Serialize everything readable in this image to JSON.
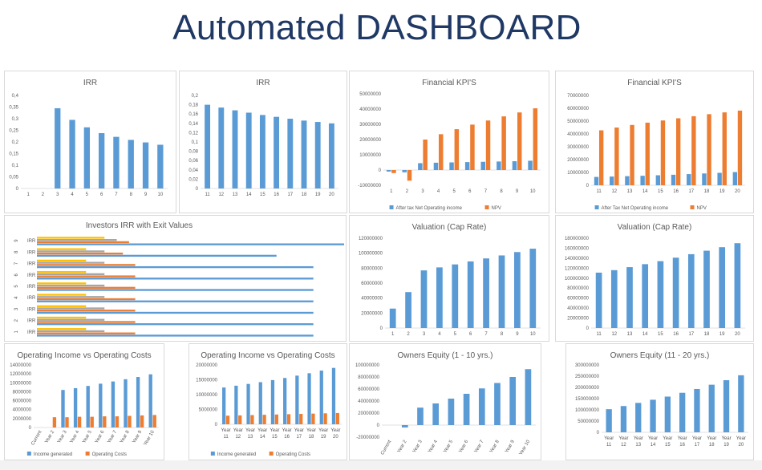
{
  "page": {
    "title": "Automated DASHBOARD"
  },
  "colors": {
    "blue": "#5b9bd5",
    "orange": "#ed7d31",
    "gray": "#a5a5a5",
    "yellow": "#ffc000",
    "title": "#1f3864"
  },
  "chart_data": [
    {
      "id": "irr1",
      "type": "bar",
      "title": "IRR",
      "categories": [
        "1",
        "2",
        "3",
        "4",
        "5",
        "6",
        "7",
        "8",
        "9",
        "10"
      ],
      "series": [
        {
          "color": "#5b9bd5",
          "values": [
            0,
            0,
            0.345,
            0.295,
            0.263,
            0.238,
            0.222,
            0.209,
            0.198,
            0.188
          ]
        }
      ],
      "ylim": [
        0,
        0.4
      ],
      "yticks": [
        0,
        0.05,
        0.1,
        0.15,
        0.2,
        0.25,
        0.3,
        0.35,
        0.4
      ],
      "ytick_labels": [
        "0",
        "0,05",
        "0,1",
        "0,15",
        "0,2",
        "0,25",
        "0,3",
        "0,35",
        "0,4"
      ]
    },
    {
      "id": "irr2",
      "type": "bar",
      "title": "IRR",
      "categories": [
        "11",
        "12",
        "13",
        "14",
        "15",
        "16",
        "17",
        "18",
        "19",
        "20"
      ],
      "series": [
        {
          "color": "#5b9bd5",
          "values": [
            0.18,
            0.174,
            0.168,
            0.163,
            0.158,
            0.154,
            0.15,
            0.146,
            0.143,
            0.14
          ]
        }
      ],
      "ylim": [
        0,
        0.2
      ],
      "yticks": [
        0,
        0.02,
        0.04,
        0.06,
        0.08,
        0.1,
        0.12,
        0.14,
        0.16,
        0.18,
        0.2
      ],
      "ytick_labels": [
        "0",
        "0,02",
        "0,04",
        "0,06",
        "0,08",
        "0,1",
        "0,12",
        "0,14",
        "0,16",
        "0,18",
        "0,2"
      ]
    },
    {
      "id": "kpi1",
      "type": "bar",
      "title": "Financial KPI'S",
      "categories": [
        "1",
        "2",
        "3",
        "4",
        "5",
        "6",
        "7",
        "8",
        "9",
        "10"
      ],
      "series": [
        {
          "name": "After tax Net Operating income",
          "color": "#5b9bd5",
          "values": [
            -1000000,
            -1500000,
            4500000,
            4800000,
            5000000,
            5200000,
            5400000,
            5600000,
            5800000,
            6100000
          ]
        },
        {
          "name": "NPV",
          "color": "#ed7d31",
          "values": [
            -2000000,
            -7000000,
            20000000,
            23500000,
            26800000,
            29800000,
            32500000,
            35200000,
            37800000,
            40500000
          ]
        }
      ],
      "ylim": [
        -10000000,
        50000000
      ],
      "yticks": [
        -10000000,
        0,
        10000000,
        20000000,
        30000000,
        40000000,
        50000000
      ],
      "ytick_labels": [
        "-10000000",
        "0",
        "10000000",
        "20000000",
        "30000000",
        "40000000",
        "50000000"
      ],
      "legend": [
        "After tax Net Operating income",
        "NPV"
      ]
    },
    {
      "id": "kpi2",
      "type": "bar",
      "title": "Financial KPI'S",
      "categories": [
        "11",
        "12",
        "13",
        "14",
        "15",
        "16",
        "17",
        "18",
        "19",
        "20"
      ],
      "series": [
        {
          "name": "After Tax Net Operating income",
          "color": "#5b9bd5",
          "values": [
            6500000,
            6800000,
            7100000,
            7400000,
            7800000,
            8200000,
            8700000,
            9200000,
            9700000,
            10300000
          ]
        },
        {
          "name": "NPV",
          "color": "#ed7d31",
          "values": [
            42800000,
            45000000,
            47000000,
            48800000,
            50500000,
            52200000,
            53800000,
            55400000,
            56800000,
            58200000
          ]
        }
      ],
      "ylim": [
        0,
        70000000
      ],
      "yticks": [
        0,
        10000000,
        20000000,
        30000000,
        40000000,
        50000000,
        60000000,
        70000000
      ],
      "ytick_labels": [
        "0",
        "10000000",
        "20000000",
        "30000000",
        "40000000",
        "50000000",
        "60000000",
        "70000000"
      ],
      "legend": [
        "After Tax Net Operating income",
        "NPV"
      ]
    },
    {
      "id": "investors",
      "type": "hbar",
      "title": "Investors IRR with Exit Values",
      "categories": [
        "1",
        "2",
        "3",
        "4",
        "5",
        "6",
        "7",
        "8",
        "9"
      ],
      "row_label": "IRR",
      "series": [
        {
          "color": "#5b9bd5",
          "values": [
            0.9,
            0.9,
            0.9,
            0.9,
            0.9,
            0.9,
            0.9,
            0.78,
            1.0
          ]
        },
        {
          "color": "#ed7d31",
          "values": [
            0.32,
            0.32,
            0.32,
            0.32,
            0.32,
            0.32,
            0.32,
            0.28,
            0.3
          ]
        },
        {
          "color": "#a5a5a5",
          "values": [
            0.22,
            0.22,
            0.22,
            0.22,
            0.22,
            0.22,
            0.22,
            0.22,
            0.26
          ]
        },
        {
          "color": "#ffc000",
          "values": [
            0.16,
            0.16,
            0.16,
            0.16,
            0.16,
            0.16,
            0.16,
            0.16,
            0.22
          ]
        }
      ]
    },
    {
      "id": "val1",
      "type": "bar",
      "title": "Valuation (Cap Rate)",
      "categories": [
        "1",
        "2",
        "3",
        "4",
        "5",
        "6",
        "7",
        "8",
        "9",
        "10"
      ],
      "series": [
        {
          "color": "#5b9bd5",
          "values": [
            26000000,
            48000000,
            77000000,
            81000000,
            85000000,
            89000000,
            93000000,
            97000000,
            101500000,
            106000000
          ]
        }
      ],
      "ylim": [
        0,
        120000000
      ],
      "yticks": [
        0,
        20000000,
        40000000,
        60000000,
        80000000,
        100000000,
        120000000
      ],
      "ytick_labels": [
        "0",
        "20000000",
        "40000000",
        "60000000",
        "80000000",
        "100000000",
        "120000000"
      ]
    },
    {
      "id": "val2",
      "type": "bar",
      "title": "Valuation (Cap Rate)",
      "categories": [
        "11",
        "12",
        "13",
        "14",
        "15",
        "16",
        "17",
        "18",
        "19",
        "20"
      ],
      "series": [
        {
          "color": "#5b9bd5",
          "values": [
            111000000,
            116000000,
            122000000,
            128000000,
            134000000,
            141000000,
            148000000,
            155000000,
            162000000,
            170000000
          ]
        }
      ],
      "ylim": [
        0,
        180000000
      ],
      "yticks": [
        0,
        20000000,
        40000000,
        60000000,
        80000000,
        100000000,
        120000000,
        140000000,
        160000000,
        180000000
      ],
      "ytick_labels": [
        "0",
        "20000000",
        "40000000",
        "60000000",
        "80000000",
        "100000000",
        "120000000",
        "140000000",
        "160000000",
        "180000000"
      ]
    },
    {
      "id": "opinc1",
      "type": "bar",
      "title": "Operating Income vs Operating Costs",
      "categories": [
        "Current",
        "Year 2",
        "Year 3",
        "Year 4",
        "Year 5",
        "Year 6",
        "Year 7",
        "Year 8",
        "Year 9",
        "Year 10"
      ],
      "rotate_labels": true,
      "series": [
        {
          "name": "Income generated",
          "color": "#5b9bd5",
          "values": [
            0,
            0,
            8400000,
            8800000,
            9300000,
            9800000,
            10300000,
            10800000,
            11300000,
            11900000
          ]
        },
        {
          "name": "Operating Costs",
          "color": "#ed7d31",
          "values": [
            0,
            2300000,
            2300000,
            2400000,
            2400000,
            2500000,
            2500000,
            2600000,
            2700000,
            2800000
          ]
        }
      ],
      "ylim": [
        0,
        14000000
      ],
      "yticks": [
        0,
        2000000,
        4000000,
        6000000,
        8000000,
        10000000,
        12000000,
        14000000
      ],
      "ytick_labels": [
        "0",
        "2000000",
        "4000000",
        "6000000",
        "8000000",
        "10000000",
        "12000000",
        "14000000"
      ],
      "legend": [
        "Income generated",
        "Operating Costs"
      ]
    },
    {
      "id": "opinc2",
      "type": "bar",
      "title": "Operating Income vs Operating Costs",
      "categories": [
        "Year 11",
        "Year 12",
        "Year 13",
        "Year 14",
        "Year 15",
        "Year 16",
        "Year 17",
        "Year 18",
        "Year 19",
        "Year 20"
      ],
      "two_line_labels": true,
      "series": [
        {
          "name": "Income generated",
          "color": "#5b9bd5",
          "values": [
            12400000,
            13000000,
            13600000,
            14200000,
            14900000,
            15600000,
            16400000,
            17200000,
            18100000,
            19000000
          ]
        },
        {
          "name": "Operating Costs",
          "color": "#ed7d31",
          "values": [
            2900000,
            3000000,
            3100000,
            3200000,
            3300000,
            3400000,
            3500000,
            3600000,
            3700000,
            3800000
          ]
        }
      ],
      "ylim": [
        0,
        20000000
      ],
      "yticks": [
        0,
        5000000,
        10000000,
        15000000,
        20000000
      ],
      "ytick_labels": [
        "0",
        "5000000",
        "10000000",
        "15000000",
        "20000000"
      ],
      "legend": [
        "Income generated",
        "Operating Costs"
      ]
    },
    {
      "id": "eq1",
      "type": "bar",
      "title": "Owners Equity (1 - 10 yrs.)",
      "categories": [
        "Current",
        "Year 2",
        "Year 3",
        "Year 4",
        "Year 5",
        "Year 6",
        "Year 7",
        "Year 8",
        "Year 9",
        "Year 10"
      ],
      "rotate_labels": true,
      "series": [
        {
          "color": "#5b9bd5",
          "values": [
            0,
            -4000000,
            29000000,
            36000000,
            44000000,
            52000000,
            61000000,
            70000000,
            80000000,
            93000000
          ]
        }
      ],
      "ylim": [
        -20000000,
        100000000
      ],
      "yticks": [
        -20000000,
        0,
        20000000,
        40000000,
        60000000,
        80000000,
        100000000
      ],
      "ytick_labels": [
        "-20000000",
        "0",
        "20000000",
        "40000000",
        "60000000",
        "80000000",
        "100000000"
      ]
    },
    {
      "id": "eq2",
      "type": "bar",
      "title": "Owners Equity (11 - 20 yrs.)",
      "categories": [
        "Year 11",
        "Year 12",
        "Year 13",
        "Year 14",
        "Year 15",
        "Year 16",
        "Year 17",
        "Year 18",
        "Year 19",
        "Year 20"
      ],
      "two_line_labels": true,
      "series": [
        {
          "color": "#5b9bd5",
          "values": [
            103000000,
            117000000,
            131000000,
            145000000,
            159000000,
            176000000,
            193000000,
            212000000,
            232000000,
            254000000
          ]
        }
      ],
      "ylim": [
        0,
        300000000
      ],
      "yticks": [
        0,
        50000000,
        100000000,
        150000000,
        200000000,
        250000000,
        300000000
      ],
      "ytick_labels": [
        "0",
        "50000000",
        "100000000",
        "150000000",
        "200000000",
        "250000000",
        "300000000"
      ]
    }
  ]
}
